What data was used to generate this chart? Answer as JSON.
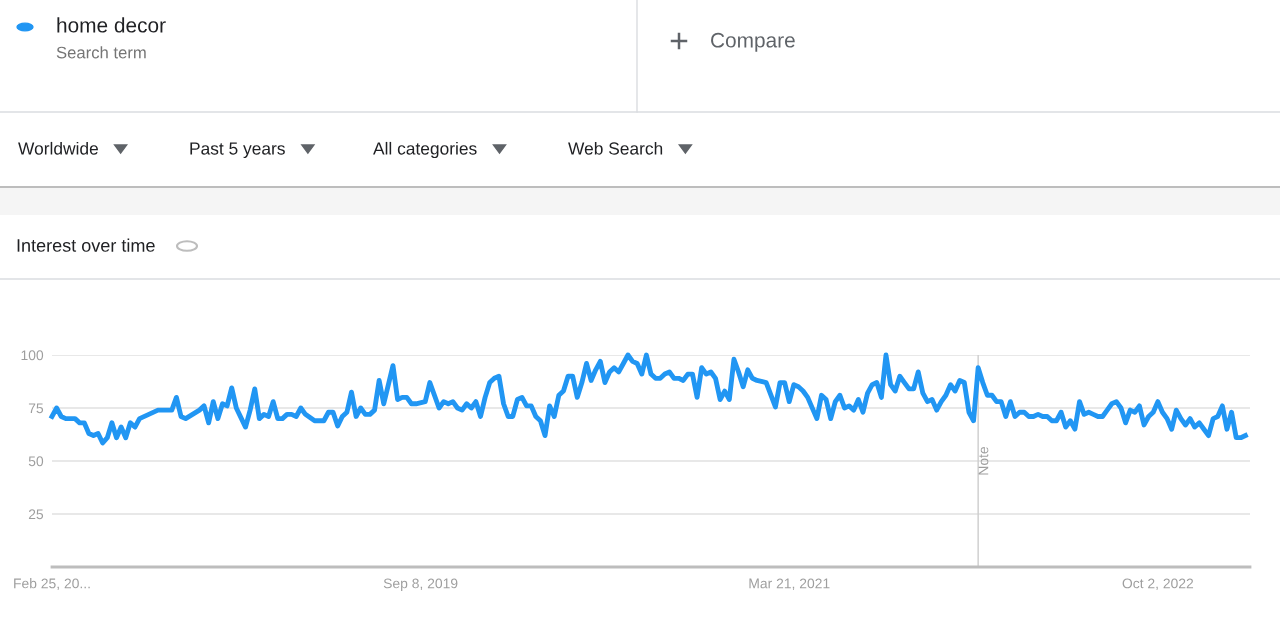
{
  "chart_data": {
    "type": "line",
    "title": "Interest over time",
    "subtitle": "Search term",
    "annotations": [
      "Compare",
      "Worldwide",
      "Past 5 years",
      "All categories",
      "Web Search"
    ],
    "legend": "top left",
    "grid": "y",
    "marker": "none",
    "line_style": "solid",
    "xlim": [
      "2018-02-25",
      "2023-02-19"
    ],
    "ylim": [
      0,
      100
    ],
    "xticks": [
      {
        "value": "2018-02-25",
        "label": "Feb 25, 20..."
      },
      {
        "value": "2019-09-08",
        "label": "Sep 8, 2019"
      },
      {
        "value": "2021-03-21",
        "label": "Mar 21, 2021"
      },
      {
        "value": "2022-10-02",
        "label": "Oct 2, 2022"
      }
    ],
    "yticks": [
      25,
      50,
      75,
      100
    ],
    "ref_lines": [
      {
        "axis": "x",
        "value": "2022-01-02",
        "label": "Note",
        "color": "#cccccc"
      }
    ],
    "series": [
      {
        "name": "home decor",
        "color": "#2196f3",
        "x": [
          "2018-02-25",
          "2018-03-04",
          "2018-03-11",
          "2018-03-18",
          "2018-04-01",
          "2018-04-08",
          "2018-04-15",
          "2018-04-22",
          "2018-04-29",
          "2018-05-06",
          "2018-05-13",
          "2018-05-20",
          "2018-05-27",
          "2018-06-03",
          "2018-06-10",
          "2018-06-17",
          "2018-06-24",
          "2018-07-01",
          "2018-07-08",
          "2018-07-22",
          "2018-08-05",
          "2018-08-26",
          "2018-09-02",
          "2018-09-09",
          "2018-09-16",
          "2018-10-07",
          "2018-10-14",
          "2018-10-21",
          "2018-10-28",
          "2018-11-04",
          "2018-11-11",
          "2018-11-18",
          "2018-11-25",
          "2018-12-02",
          "2018-12-16",
          "2018-12-23",
          "2018-12-30",
          "2019-01-06",
          "2019-01-13",
          "2019-01-20",
          "2019-01-27",
          "2019-02-03",
          "2019-02-10",
          "2019-02-17",
          "2019-02-24",
          "2019-03-03",
          "2019-03-10",
          "2019-03-17",
          "2019-03-31",
          "2019-04-14",
          "2019-04-21",
          "2019-04-28",
          "2019-05-05",
          "2019-05-12",
          "2019-05-19",
          "2019-05-26",
          "2019-06-02",
          "2019-06-09",
          "2019-06-16",
          "2019-06-23",
          "2019-06-30",
          "2019-07-07",
          "2019-07-14",
          "2019-07-28",
          "2019-08-04",
          "2019-08-11",
          "2019-08-18",
          "2019-08-25",
          "2019-09-01",
          "2019-09-15",
          "2019-09-22",
          "2019-09-29",
          "2019-10-06",
          "2019-10-13",
          "2019-10-20",
          "2019-10-27",
          "2019-11-03",
          "2019-11-10",
          "2019-11-17",
          "2019-11-24",
          "2019-12-01",
          "2019-12-08",
          "2019-12-15",
          "2019-12-22",
          "2019-12-29",
          "2020-01-05",
          "2020-01-12",
          "2020-01-19",
          "2020-01-26",
          "2020-02-02",
          "2020-02-09",
          "2020-02-16",
          "2020-02-23",
          "2020-03-01",
          "2020-03-08",
          "2020-03-15",
          "2020-03-22",
          "2020-03-29",
          "2020-04-05",
          "2020-04-12",
          "2020-04-19",
          "2020-04-26",
          "2020-05-03",
          "2020-05-10",
          "2020-05-17",
          "2020-05-24",
          "2020-05-31",
          "2020-06-07",
          "2020-06-14",
          "2020-06-21",
          "2020-06-28",
          "2020-07-05",
          "2020-07-12",
          "2020-07-19",
          "2020-07-26",
          "2020-08-02",
          "2020-08-09",
          "2020-08-16",
          "2020-08-23",
          "2020-08-30",
          "2020-09-06",
          "2020-09-13",
          "2020-09-20",
          "2020-09-27",
          "2020-10-04",
          "2020-10-11",
          "2020-10-18",
          "2020-10-25",
          "2020-11-01",
          "2020-11-08",
          "2020-11-15",
          "2020-11-22",
          "2020-11-29",
          "2020-12-06",
          "2020-12-13",
          "2020-12-20",
          "2020-12-27",
          "2021-01-03",
          "2021-01-10",
          "2021-01-17",
          "2021-01-24",
          "2021-01-31",
          "2021-02-14",
          "2021-02-28",
          "2021-03-07",
          "2021-03-14",
          "2021-03-21",
          "2021-03-28",
          "2021-04-04",
          "2021-04-11",
          "2021-04-18",
          "2021-05-02",
          "2021-05-09",
          "2021-05-16",
          "2021-05-23",
          "2021-05-30",
          "2021-06-06",
          "2021-06-13",
          "2021-06-20",
          "2021-06-27",
          "2021-07-04",
          "2021-07-11",
          "2021-07-18",
          "2021-07-25",
          "2021-08-01",
          "2021-08-08",
          "2021-08-15",
          "2021-08-22",
          "2021-08-29",
          "2021-09-05",
          "2021-09-12",
          "2021-09-19",
          "2021-09-26",
          "2021-10-03",
          "2021-10-10",
          "2021-10-17",
          "2021-10-24",
          "2021-10-31",
          "2021-11-07",
          "2021-11-14",
          "2021-11-21",
          "2021-11-28",
          "2021-12-05",
          "2021-12-12",
          "2021-12-19",
          "2021-12-26",
          "2022-01-02",
          "2022-01-09",
          "2022-01-16",
          "2022-01-23",
          "2022-01-30",
          "2022-02-06",
          "2022-02-13",
          "2022-02-20",
          "2022-02-27",
          "2022-03-06",
          "2022-03-13",
          "2022-03-20",
          "2022-03-27",
          "2022-04-03",
          "2022-04-10",
          "2022-04-17",
          "2022-04-24",
          "2022-05-01",
          "2022-05-08",
          "2022-05-15",
          "2022-05-22",
          "2022-05-29",
          "2022-06-05",
          "2022-06-12",
          "2022-06-19",
          "2022-06-26",
          "2022-07-03",
          "2022-07-10",
          "2022-07-17",
          "2022-07-24",
          "2022-07-31",
          "2022-08-07",
          "2022-08-14",
          "2022-08-21",
          "2022-08-28",
          "2022-09-04",
          "2022-09-11",
          "2022-09-18",
          "2022-09-25",
          "2022-10-02",
          "2022-10-09",
          "2022-10-16",
          "2022-10-23",
          "2022-10-30",
          "2022-11-06",
          "2022-11-13",
          "2022-11-20",
          "2022-11-27",
          "2022-12-04",
          "2022-12-11",
          "2022-12-18",
          "2022-12-25",
          "2023-01-01",
          "2023-01-08",
          "2023-01-15",
          "2023-01-22",
          "2023-01-29",
          "2023-02-05",
          "2023-02-12"
        ],
        "values": [
          71,
          75,
          71,
          70,
          70,
          68,
          68,
          63,
          62,
          63,
          58.5,
          61,
          68,
          61,
          66,
          61,
          68,
          66,
          70,
          72,
          74,
          74,
          80,
          71,
          70,
          74,
          76,
          68,
          78,
          70,
          77,
          76,
          84.5,
          75,
          66,
          74,
          84,
          70,
          72,
          71,
          78,
          70,
          70,
          72,
          72,
          71,
          75,
          72,
          69,
          69,
          73,
          73,
          66.5,
          71,
          73,
          82.5,
          71,
          75,
          72,
          72,
          74,
          88,
          77,
          95,
          79,
          80,
          80,
          77,
          77,
          78,
          87,
          81,
          75,
          78,
          77,
          78,
          75,
          74,
          77,
          75,
          78,
          71,
          80,
          87,
          89,
          90,
          77,
          71,
          71,
          79,
          80,
          76,
          76,
          71,
          69,
          62,
          76,
          71,
          81,
          83,
          90,
          90,
          80,
          87,
          96,
          88,
          93,
          97,
          87,
          92,
          94,
          92,
          96,
          100,
          97,
          96,
          91,
          100,
          91,
          89,
          89,
          91,
          92,
          89,
          89,
          88,
          91,
          91,
          80,
          94,
          91,
          92,
          89,
          79,
          83,
          79,
          98,
          92,
          85,
          93,
          89,
          88,
          87,
          75.5,
          87,
          87,
          78,
          86,
          85,
          83,
          80,
          70,
          81,
          79,
          70,
          78,
          81,
          75,
          76,
          74,
          79,
          73,
          82,
          86,
          87,
          80,
          100,
          86,
          83,
          90,
          87,
          84,
          84,
          92,
          82,
          78,
          79,
          74,
          78,
          81,
          86,
          83,
          88,
          87,
          73,
          69,
          94,
          87,
          81,
          81,
          78,
          78,
          71,
          78,
          71,
          73,
          73,
          71,
          71,
          72,
          71,
          71,
          69,
          69,
          73,
          66,
          69,
          65,
          78,
          72,
          73,
          72,
          71,
          71,
          74,
          77,
          78,
          75,
          68,
          74,
          73,
          76,
          67,
          71,
          73,
          78,
          73,
          70,
          65,
          74,
          70,
          67,
          70,
          66,
          68,
          65,
          62,
          70,
          71,
          76,
          65,
          73,
          61,
          61,
          62
        ]
      }
    ]
  }
}
